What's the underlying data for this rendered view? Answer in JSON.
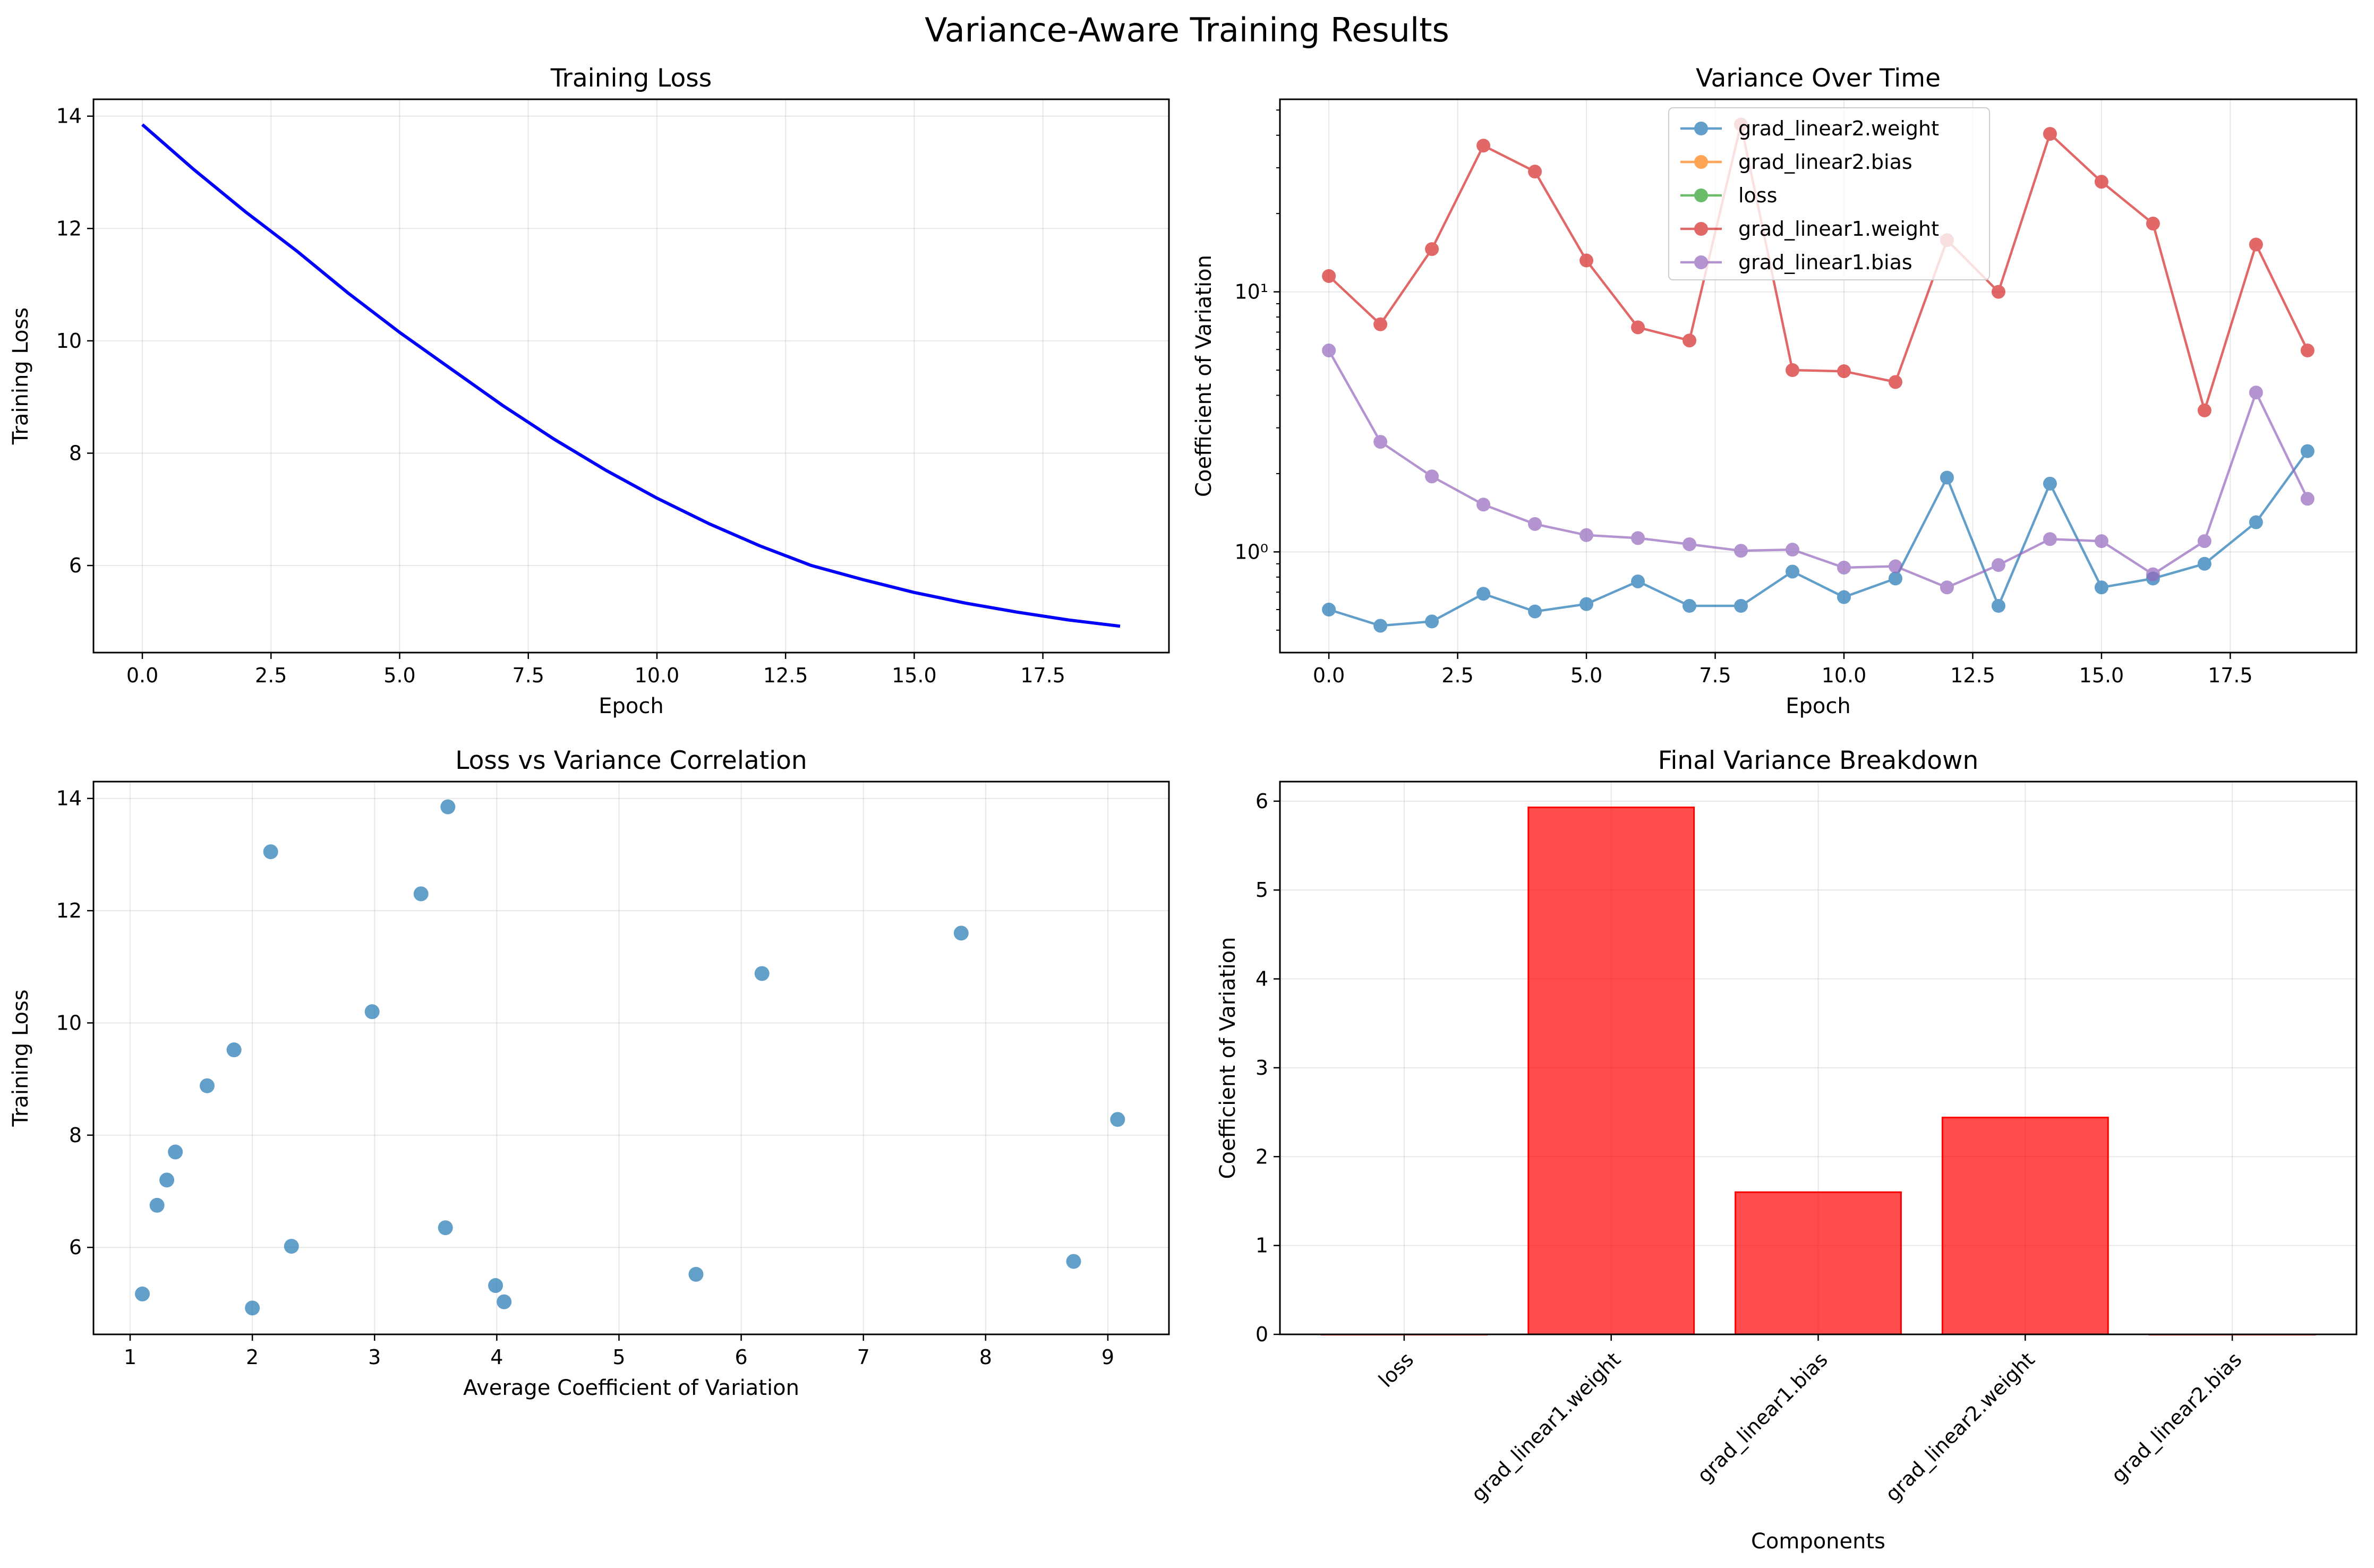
{
  "figure": {
    "suptitle": "Variance-Aware Training Results"
  },
  "colors": {
    "loss_line": "#0000ff",
    "grad_linear2_weight": "#1f77b4",
    "grad_linear2_bias": "#ff7f0e",
    "loss": "#2ca02c",
    "grad_linear1_weight": "#d62728",
    "grad_linear1_bias": "#9467bd",
    "scatter": "#1f77b4",
    "bar_fill": "#ff0000",
    "grid": "#b0b0b0"
  },
  "chart_data": [
    {
      "type": "line",
      "title": "Training Loss",
      "xlabel": "Epoch",
      "ylabel": "Training Loss",
      "xlim": [
        -0.95,
        19.95
      ],
      "ylim": [
        4.45,
        14.3
      ],
      "xticks": [
        0.0,
        2.5,
        5.0,
        7.5,
        10.0,
        12.5,
        15.0,
        17.5
      ],
      "xtick_labels": [
        "0.0",
        "2.5",
        "5.0",
        "7.5",
        "10.0",
        "12.5",
        "15.0",
        "17.5"
      ],
      "yticks": [
        6,
        8,
        10,
        12,
        14
      ],
      "ytick_labels": [
        "6",
        "8",
        "10",
        "12",
        "14"
      ],
      "grid": true,
      "series": [
        {
          "color_key": "loss_line",
          "x": [
            0,
            1,
            2,
            3,
            4,
            5,
            6,
            7,
            8,
            9,
            10,
            11,
            12,
            13,
            14,
            15,
            16,
            17,
            18,
            19
          ],
          "y": [
            13.85,
            13.05,
            12.3,
            11.6,
            10.85,
            10.15,
            9.5,
            8.85,
            8.25,
            7.7,
            7.2,
            6.75,
            6.35,
            6.0,
            5.75,
            5.52,
            5.33,
            5.17,
            5.03,
            4.92
          ]
        }
      ]
    },
    {
      "type": "line",
      "title": "Variance Over Time",
      "xlabel": "Epoch",
      "ylabel": "Coefficient of Variation",
      "yscale": "log",
      "xlim": [
        -0.95,
        19.95
      ],
      "ylim": [
        0.41,
        55
      ],
      "xticks": [
        0.0,
        2.5,
        5.0,
        7.5,
        10.0,
        12.5,
        15.0,
        17.5
      ],
      "xtick_labels": [
        "0.0",
        "2.5",
        "5.0",
        "7.5",
        "10.0",
        "12.5",
        "15.0",
        "17.5"
      ],
      "yticks": [
        1,
        10
      ],
      "ytick_labels": [
        "10⁰",
        "10¹"
      ],
      "grid": true,
      "legend_position": "top-center",
      "series": [
        {
          "name": "grad_linear2.weight",
          "color_key": "grad_linear2_weight",
          "x": [
            0,
            1,
            2,
            3,
            4,
            5,
            6,
            7,
            8,
            9,
            10,
            11,
            12,
            13,
            14,
            15,
            16,
            17,
            18,
            19
          ],
          "y": [
            0.6,
            0.52,
            0.54,
            0.69,
            0.59,
            0.63,
            0.77,
            0.62,
            0.62,
            0.84,
            0.67,
            0.79,
            1.93,
            0.62,
            1.83,
            0.73,
            0.79,
            0.9,
            1.3,
            2.44
          ]
        },
        {
          "name": "grad_linear2.bias",
          "color_key": "grad_linear2_bias",
          "x": [],
          "y": []
        },
        {
          "name": "loss",
          "color_key": "loss",
          "x": [],
          "y": []
        },
        {
          "name": "grad_linear1.weight",
          "color_key": "grad_linear1_weight",
          "x": [
            0,
            1,
            2,
            3,
            4,
            5,
            6,
            7,
            8,
            9,
            10,
            11,
            12,
            13,
            14,
            15,
            16,
            17,
            18,
            19
          ],
          "y": [
            11.5,
            7.5,
            14.6,
            36.5,
            29.0,
            13.2,
            7.3,
            6.5,
            44.0,
            5.0,
            4.95,
            4.5,
            15.8,
            10.0,
            40.5,
            26.5,
            18.3,
            3.5,
            15.2,
            5.95
          ]
        },
        {
          "name": "grad_linear1.bias",
          "color_key": "grad_linear1_bias",
          "x": [
            0,
            1,
            2,
            3,
            4,
            5,
            6,
            7,
            8,
            9,
            10,
            11,
            12,
            13,
            14,
            15,
            16,
            17,
            18,
            19
          ],
          "y": [
            5.95,
            2.65,
            1.95,
            1.52,
            1.28,
            1.16,
            1.13,
            1.07,
            1.01,
            1.02,
            0.87,
            0.88,
            0.73,
            0.89,
            1.12,
            1.1,
            0.82,
            1.1,
            4.1,
            1.6
          ]
        }
      ]
    },
    {
      "type": "scatter",
      "title": "Loss vs Variance Correlation",
      "xlabel": "Average Coefficient of Variation",
      "ylabel": "Training Loss",
      "xlim": [
        0.7,
        9.5
      ],
      "ylim": [
        4.45,
        14.3
      ],
      "xticks": [
        1,
        2,
        3,
        4,
        5,
        6,
        7,
        8,
        9
      ],
      "xtick_labels": [
        "1",
        "2",
        "3",
        "4",
        "5",
        "6",
        "7",
        "8",
        "9"
      ],
      "yticks": [
        6,
        8,
        10,
        12,
        14
      ],
      "ytick_labels": [
        "6",
        "8",
        "10",
        "12",
        "14"
      ],
      "grid": true,
      "points": [
        {
          "x": 3.6,
          "y": 13.85
        },
        {
          "x": 2.15,
          "y": 13.05
        },
        {
          "x": 3.38,
          "y": 12.3
        },
        {
          "x": 7.8,
          "y": 11.6
        },
        {
          "x": 6.17,
          "y": 10.88
        },
        {
          "x": 2.98,
          "y": 10.2
        },
        {
          "x": 1.85,
          "y": 9.52
        },
        {
          "x": 1.63,
          "y": 8.88
        },
        {
          "x": 9.08,
          "y": 8.28
        },
        {
          "x": 1.37,
          "y": 7.7
        },
        {
          "x": 1.3,
          "y": 7.2
        },
        {
          "x": 1.22,
          "y": 6.75
        },
        {
          "x": 3.58,
          "y": 6.35
        },
        {
          "x": 2.32,
          "y": 6.02
        },
        {
          "x": 8.72,
          "y": 5.75
        },
        {
          "x": 5.63,
          "y": 5.52
        },
        {
          "x": 3.99,
          "y": 5.32
        },
        {
          "x": 1.1,
          "y": 5.17
        },
        {
          "x": 4.06,
          "y": 5.03
        },
        {
          "x": 2.0,
          "y": 4.92
        }
      ]
    },
    {
      "type": "bar",
      "title": "Final Variance Breakdown",
      "xlabel": "Components",
      "ylabel": "Coefficient of Variation",
      "categories": [
        "loss",
        "grad_linear1.weight",
        "grad_linear1.bias",
        "grad_linear2.weight",
        "grad_linear2.bias"
      ],
      "values": [
        0.0,
        5.93,
        1.6,
        2.44,
        0.0
      ],
      "ylim": [
        0,
        6.22
      ],
      "yticks": [
        0,
        1,
        2,
        3,
        4,
        5,
        6
      ],
      "ytick_labels": [
        "0",
        "1",
        "2",
        "3",
        "4",
        "5",
        "6"
      ],
      "grid": true
    }
  ]
}
